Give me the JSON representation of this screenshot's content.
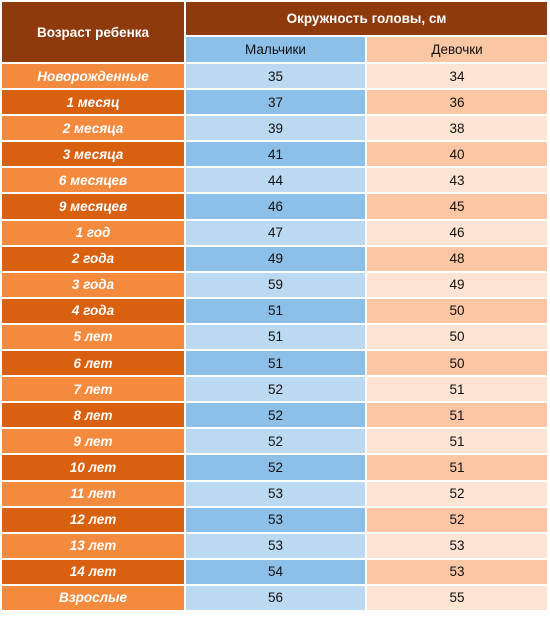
{
  "header": {
    "age_label": "Возраст ребенка",
    "circumference_label": "Окружность головы, см",
    "boys_label": "Мальчики",
    "girls_label": "Девочки"
  },
  "colors": {
    "header_dark": "#8e3a0d",
    "age_light": "#f48a3e",
    "age_dark": "#d9600f",
    "boys_light": "#bcd9f2",
    "boys_dark": "#8dc0e8",
    "girls_light": "#fde4d3",
    "girls_dark": "#fbc6a4"
  },
  "rows": [
    {
      "age": "Новорожденные",
      "boys": "35",
      "girls": "34"
    },
    {
      "age": "1 месяц",
      "boys": "37",
      "girls": "36"
    },
    {
      "age": "2 месяца",
      "boys": "39",
      "girls": "38"
    },
    {
      "age": "3 месяца",
      "boys": "41",
      "girls": "40"
    },
    {
      "age": "6 месяцев",
      "boys": "44",
      "girls": "43"
    },
    {
      "age": "9 месяцев",
      "boys": "46",
      "girls": "45"
    },
    {
      "age": "1 год",
      "boys": "47",
      "girls": "46"
    },
    {
      "age": "2 года",
      "boys": "49",
      "girls": "48"
    },
    {
      "age": "3 года",
      "boys": "59",
      "girls": "49"
    },
    {
      "age": "4 года",
      "boys": "51",
      "girls": "50"
    },
    {
      "age": "5 лет",
      "boys": "51",
      "girls": "50"
    },
    {
      "age": "6 лет",
      "boys": "51",
      "girls": "50"
    },
    {
      "age": "7 лет",
      "boys": "52",
      "girls": "51"
    },
    {
      "age": "8 лет",
      "boys": "52",
      "girls": "51"
    },
    {
      "age": "9 лет",
      "boys": "52",
      "girls": "51"
    },
    {
      "age": "10 лет",
      "boys": "52",
      "girls": "51"
    },
    {
      "age": "11 лет",
      "boys": "53",
      "girls": "52"
    },
    {
      "age": "12 лет",
      "boys": "53",
      "girls": "52"
    },
    {
      "age": "13 лет",
      "boys": "53",
      "girls": "53"
    },
    {
      "age": "14 лет",
      "boys": "54",
      "girls": "53"
    },
    {
      "age": "Взрослые",
      "boys": "56",
      "girls": "55"
    }
  ]
}
